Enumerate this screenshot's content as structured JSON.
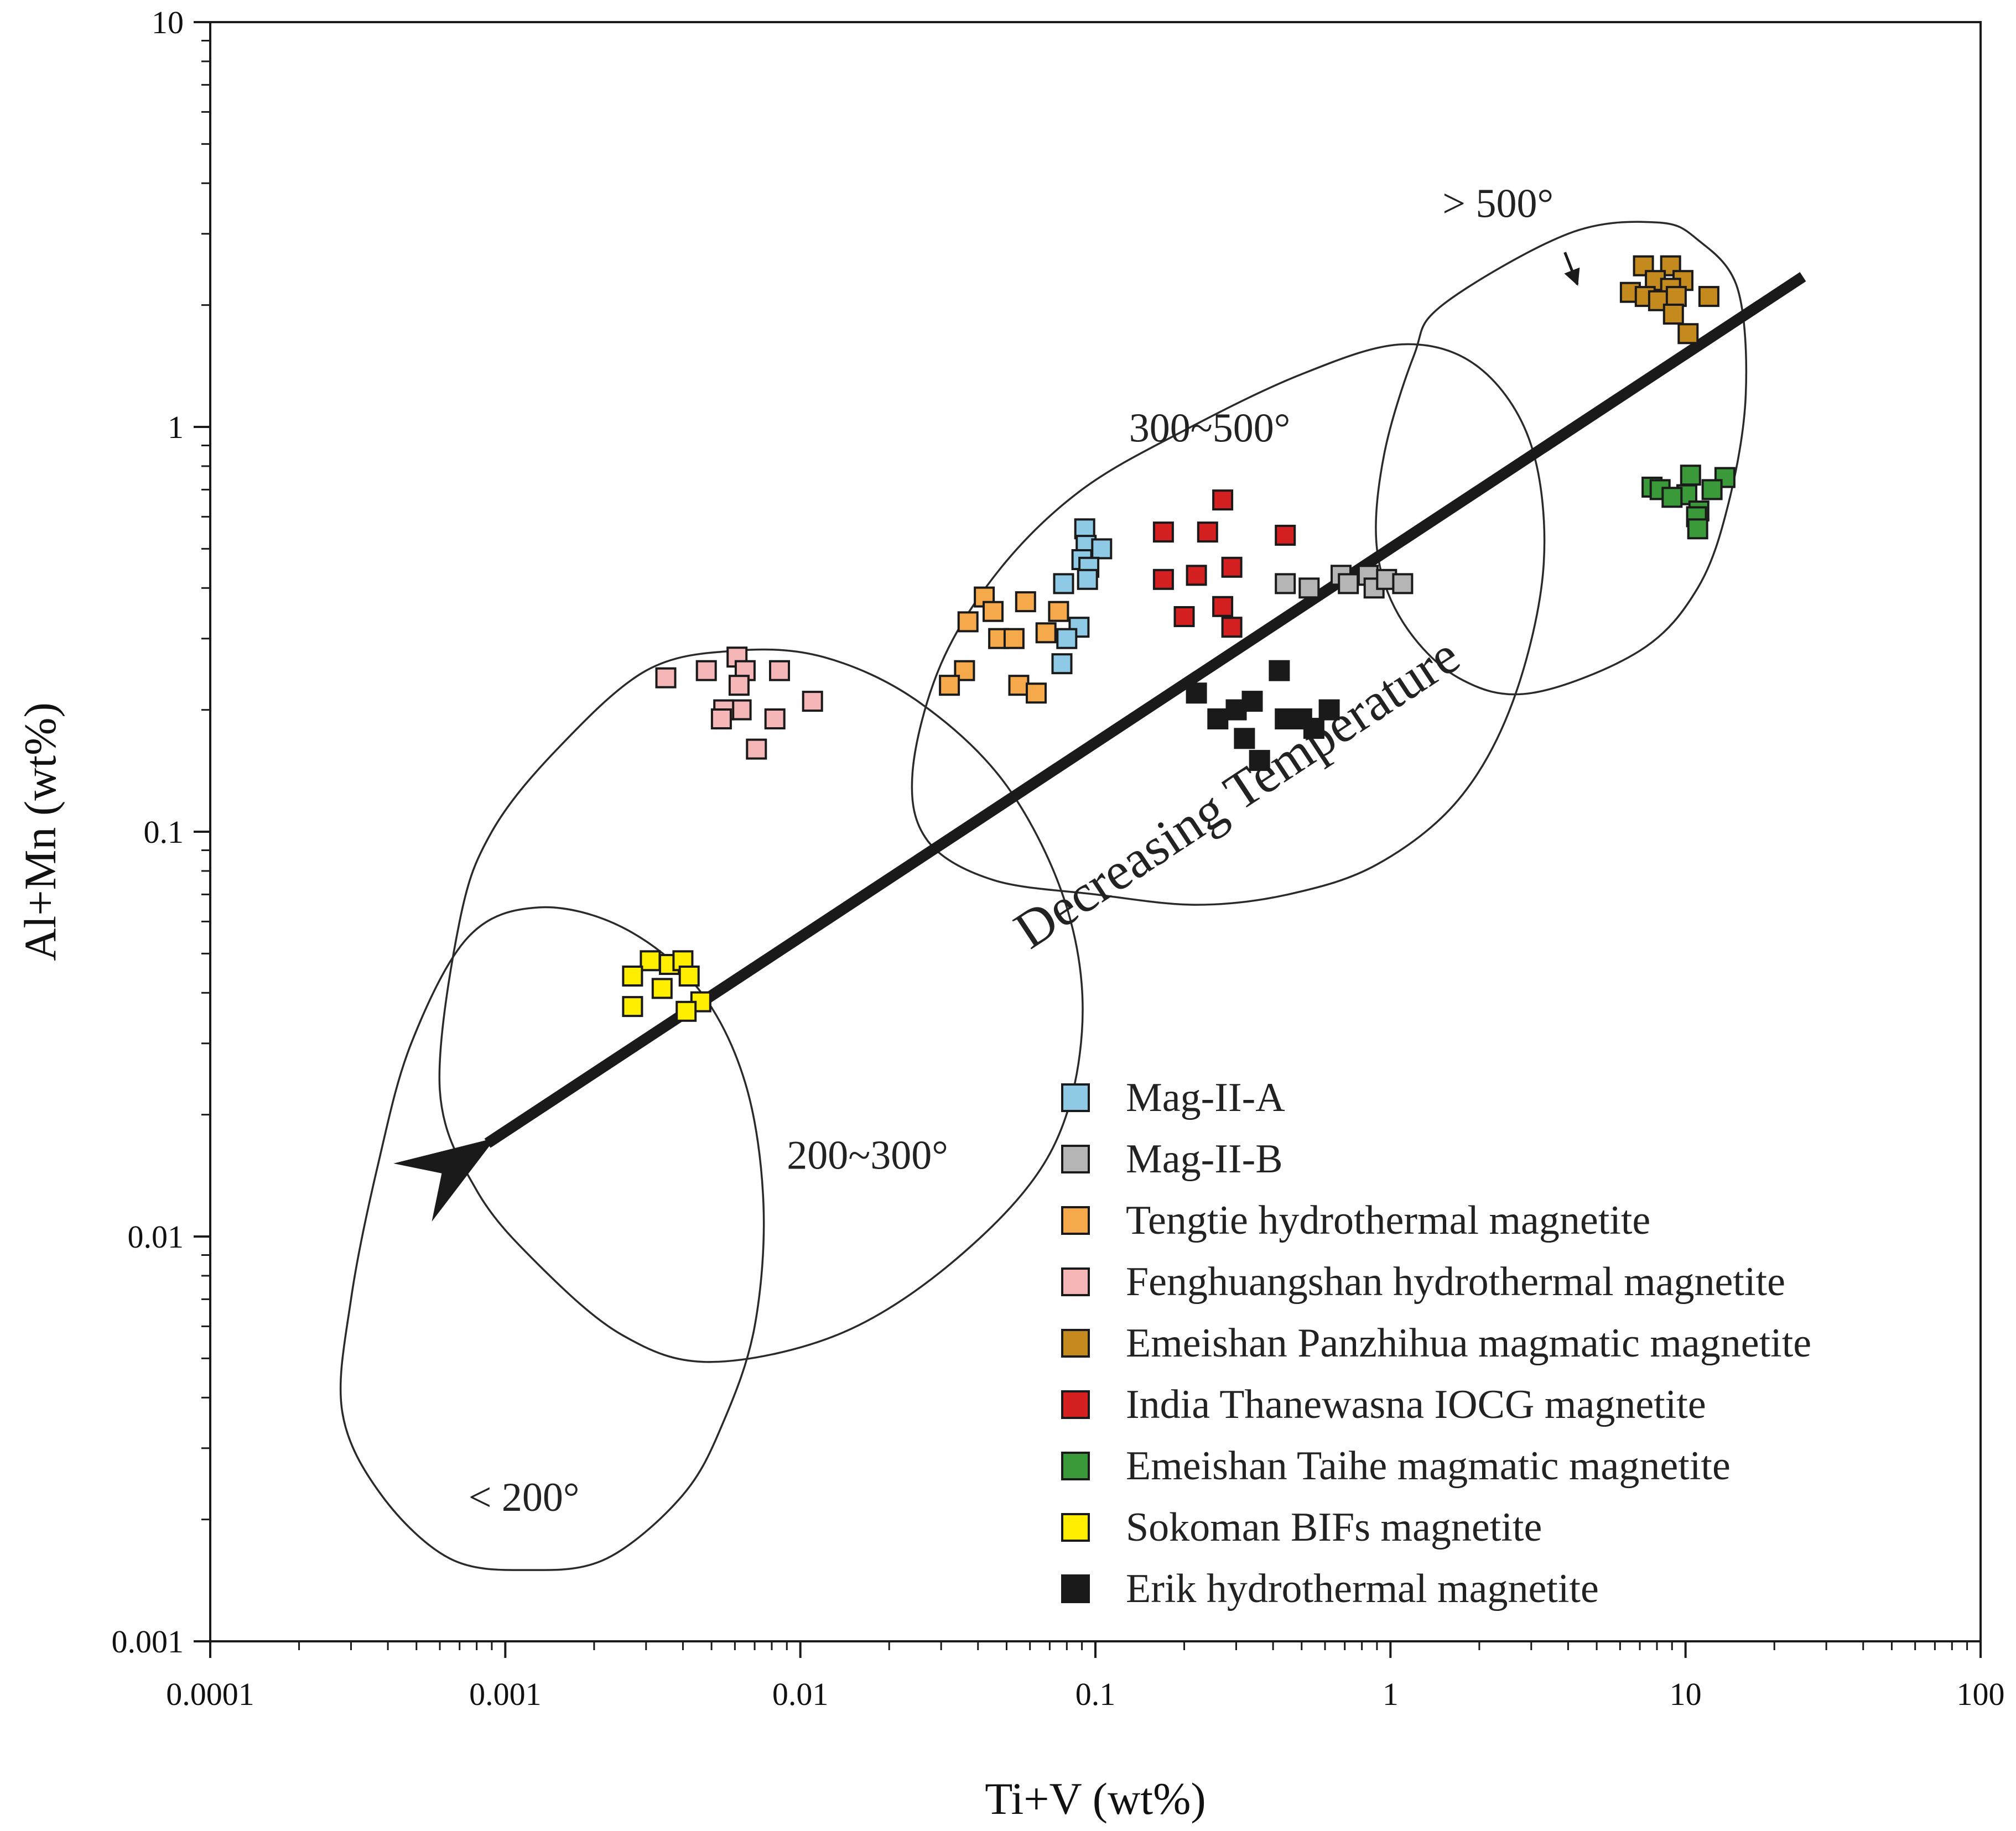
{
  "chart_data": {
    "type": "scatter",
    "x_scale": "log",
    "y_scale": "log",
    "xlabel": "Ti+V (wt%)",
    "ylabel": "Al+Mn (wt%)",
    "xlim": [
      0.0001,
      100
    ],
    "ylim": [
      0.001,
      10
    ],
    "x_ticks": [
      0.0001,
      0.001,
      0.01,
      0.1,
      1,
      10,
      100
    ],
    "x_tick_labels": [
      "0.0001",
      "0.001",
      "0.01",
      "0.1",
      "1",
      "10",
      "100"
    ],
    "y_ticks": [
      0.001,
      0.01,
      0.1,
      1,
      10
    ],
    "y_tick_labels": [
      "0.001",
      "0.01",
      "0.1",
      "1",
      "10"
    ],
    "legend_position": "bottom-right",
    "series": [
      {
        "name": "Mag-II-A",
        "color": "#8ecae6",
        "points": [
          [
            0.092,
            0.56
          ],
          [
            0.093,
            0.51
          ],
          [
            0.105,
            0.5
          ],
          [
            0.09,
            0.47
          ],
          [
            0.095,
            0.45
          ],
          [
            0.094,
            0.42
          ],
          [
            0.078,
            0.41
          ],
          [
            0.088,
            0.32
          ],
          [
            0.08,
            0.3
          ],
          [
            0.077,
            0.26
          ]
        ]
      },
      {
        "name": "Mag-II-B",
        "color": "#b5b5b5",
        "points": [
          [
            0.44,
            0.41
          ],
          [
            0.53,
            0.4
          ],
          [
            0.68,
            0.43
          ],
          [
            0.72,
            0.41
          ],
          [
            0.84,
            0.43
          ],
          [
            0.88,
            0.4
          ],
          [
            0.97,
            0.42
          ],
          [
            1.1,
            0.41
          ]
        ]
      },
      {
        "name": "Tengtie hydrothermal magnetite",
        "color": "#f5a94a",
        "points": [
          [
            0.042,
            0.38
          ],
          [
            0.045,
            0.35
          ],
          [
            0.058,
            0.37
          ],
          [
            0.037,
            0.33
          ],
          [
            0.047,
            0.3
          ],
          [
            0.053,
            0.3
          ],
          [
            0.075,
            0.35
          ],
          [
            0.068,
            0.31
          ],
          [
            0.036,
            0.25
          ],
          [
            0.055,
            0.23
          ],
          [
            0.063,
            0.22
          ],
          [
            0.032,
            0.23
          ]
        ]
      },
      {
        "name": "Fenghuangshan hydrothermal magnetite",
        "color": "#f4b6b6",
        "points": [
          [
            0.0061,
            0.27
          ],
          [
            0.0065,
            0.25
          ],
          [
            0.0048,
            0.25
          ],
          [
            0.0085,
            0.25
          ],
          [
            0.0035,
            0.24
          ],
          [
            0.0062,
            0.23
          ],
          [
            0.0063,
            0.2
          ],
          [
            0.0055,
            0.2
          ],
          [
            0.0054,
            0.19
          ],
          [
            0.0082,
            0.19
          ],
          [
            0.011,
            0.21
          ],
          [
            0.0071,
            0.16
          ]
        ]
      },
      {
        "name": "Emeishan Panzhihua magmatic magnetite",
        "color": "#c58a1e",
        "points": [
          [
            7.2,
            2.5
          ],
          [
            8.9,
            2.5
          ],
          [
            7.9,
            2.3
          ],
          [
            9.8,
            2.3
          ],
          [
            8.9,
            2.2
          ],
          [
            6.5,
            2.15
          ],
          [
            7.3,
            2.1
          ],
          [
            8.1,
            2.05
          ],
          [
            9.3,
            2.1
          ],
          [
            12,
            2.1
          ],
          [
            9.1,
            1.9
          ],
          [
            10.2,
            1.7
          ]
        ]
      },
      {
        "name": "India Thanewasna IOCG magnetite",
        "color": "#d42020",
        "points": [
          [
            0.27,
            0.66
          ],
          [
            0.17,
            0.55
          ],
          [
            0.24,
            0.55
          ],
          [
            0.44,
            0.54
          ],
          [
            0.17,
            0.42
          ],
          [
            0.22,
            0.43
          ],
          [
            0.29,
            0.45
          ],
          [
            0.2,
            0.34
          ],
          [
            0.27,
            0.36
          ],
          [
            0.29,
            0.32
          ]
        ]
      },
      {
        "name": "Emeishan Taihe magmatic magnetite",
        "color": "#3a9a3a",
        "points": [
          [
            10.4,
            0.76
          ],
          [
            13.6,
            0.75
          ],
          [
            7.7,
            0.71
          ],
          [
            8.2,
            0.7
          ],
          [
            12.3,
            0.7
          ],
          [
            10.1,
            0.68
          ],
          [
            9,
            0.67
          ],
          [
            11.1,
            0.62
          ],
          [
            10.9,
            0.6
          ],
          [
            11,
            0.56
          ]
        ]
      },
      {
        "name": "Sokoman BIFs magnetite",
        "color": "#ffee00",
        "points": [
          [
            0.0031,
            0.048
          ],
          [
            0.0036,
            0.047
          ],
          [
            0.004,
            0.048
          ],
          [
            0.0027,
            0.044
          ],
          [
            0.0042,
            0.044
          ],
          [
            0.0034,
            0.041
          ],
          [
            0.0027,
            0.037
          ],
          [
            0.0046,
            0.038
          ],
          [
            0.0041,
            0.036
          ]
        ]
      },
      {
        "name": "Erik hydrothermal magnetite",
        "color": "#1a1a1a",
        "points": [
          [
            0.42,
            0.25
          ],
          [
            0.22,
            0.22
          ],
          [
            0.3,
            0.2
          ],
          [
            0.34,
            0.21
          ],
          [
            0.26,
            0.19
          ],
          [
            0.44,
            0.19
          ],
          [
            0.5,
            0.19
          ],
          [
            0.62,
            0.2
          ],
          [
            0.55,
            0.18
          ],
          [
            0.32,
            0.17
          ],
          [
            0.36,
            0.15
          ]
        ]
      }
    ],
    "regions": [
      {
        "name": "> 500°",
        "label": "> 500°",
        "outline": [
          [
            1.5,
            2
          ],
          [
            4,
            3
          ],
          [
            8,
            3.2
          ],
          [
            11,
            2.9
          ],
          [
            15,
            2.2
          ],
          [
            16,
            1.2
          ],
          [
            14,
            0.65
          ],
          [
            11,
            0.4
          ],
          [
            7,
            0.28
          ],
          [
            3,
            0.22
          ],
          [
            1.7,
            0.24
          ],
          [
            1.1,
            0.33
          ],
          [
            0.9,
            0.5
          ],
          [
            0.95,
            0.85
          ],
          [
            1.2,
            1.5
          ]
        ]
      },
      {
        "name": "300~500°",
        "label": "300~500°",
        "outline": [
          [
            0.5,
            1.35
          ],
          [
            1.1,
            1.6
          ],
          [
            2,
            1.4
          ],
          [
            3,
            0.9
          ],
          [
            3.3,
            0.45
          ],
          [
            2.6,
            0.21
          ],
          [
            1.7,
            0.12
          ],
          [
            0.9,
            0.083
          ],
          [
            0.45,
            0.07
          ],
          [
            0.22,
            0.066
          ],
          [
            0.1,
            0.07
          ],
          [
            0.045,
            0.076
          ],
          [
            0.027,
            0.095
          ],
          [
            0.024,
            0.14
          ],
          [
            0.03,
            0.26
          ],
          [
            0.048,
            0.45
          ],
          [
            0.09,
            0.7
          ],
          [
            0.2,
            0.98
          ]
        ]
      },
      {
        "name": "200~300°",
        "label": "200~300°",
        "outline": [
          [
            0.0015,
            0.16
          ],
          [
            0.003,
            0.25
          ],
          [
            0.006,
            0.28
          ],
          [
            0.012,
            0.27
          ],
          [
            0.025,
            0.21
          ],
          [
            0.05,
            0.13
          ],
          [
            0.08,
            0.065
          ],
          [
            0.09,
            0.032
          ],
          [
            0.07,
            0.016
          ],
          [
            0.035,
            0.009
          ],
          [
            0.014,
            0.0058
          ],
          [
            0.005,
            0.0049
          ],
          [
            0.0025,
            0.0057
          ],
          [
            0.0013,
            0.0085
          ],
          [
            0.0008,
            0.013
          ],
          [
            0.0006,
            0.023
          ],
          [
            0.0007,
            0.06
          ],
          [
            0.0009,
            0.1
          ]
        ]
      },
      {
        "name": "< 200°",
        "label": "< 200°",
        "outline": [
          [
            0.00075,
            0.055
          ],
          [
            0.0013,
            0.065
          ],
          [
            0.0025,
            0.058
          ],
          [
            0.0045,
            0.041
          ],
          [
            0.0065,
            0.024
          ],
          [
            0.0075,
            0.012
          ],
          [
            0.007,
            0.006
          ],
          [
            0.0055,
            0.0035
          ],
          [
            0.004,
            0.0023
          ],
          [
            0.0022,
            0.0016
          ],
          [
            0.0012,
            0.0015
          ],
          [
            0.00065,
            0.0016
          ],
          [
            0.00038,
            0.0023
          ],
          [
            0.00028,
            0.0037
          ],
          [
            0.0003,
            0.007
          ],
          [
            0.00037,
            0.015
          ],
          [
            0.00048,
            0.03
          ]
        ]
      }
    ],
    "region_label_positions": [
      [
        1.5,
        3.3
      ],
      [
        0.13,
        0.92
      ],
      [
        0.009,
        0.0147
      ],
      [
        0.00075,
        0.0021
      ]
    ],
    "trend": {
      "label": "Decreasing Temperature",
      "from": [
        25,
        2.35
      ],
      "to": [
        0.00087,
        0.017
      ],
      "label_anchor": [
        0.06,
        0.051
      ]
    },
    "small_arrow": {
      "from": [
        3.9,
        2.7
      ],
      "to": [
        4.3,
        2.25
      ]
    }
  }
}
